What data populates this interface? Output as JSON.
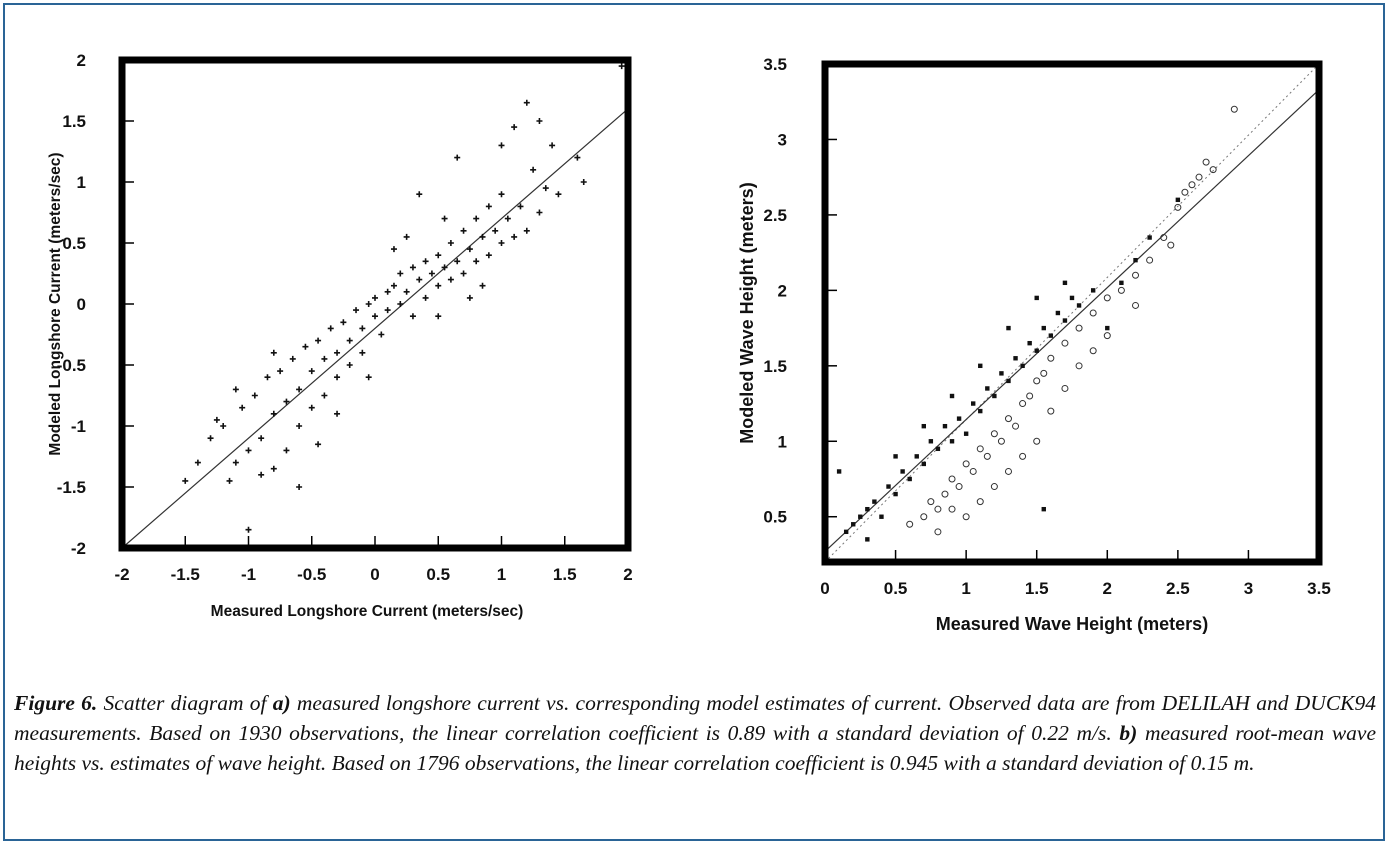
{
  "figure": {
    "caption": {
      "label": "Figure 6.",
      "part_a": "a)",
      "text_1": " Scatter diagram of ",
      "text_2": " measured longshore current vs. corresponding model estimates of current. Observed data are from DELILAH and DUCK94 measurements. Based on 1930 observations, the linear correlation coefficient is 0.89 with a standard deviation of 0.22 m/s. ",
      "part_b": "b)",
      "text_3": " measured root-mean wave heights vs. estimates of wave height. Based on 1796 observations, the linear correlation coefficient is 0.945 with a standard deviation of 0.15 m."
    }
  },
  "chart_data": [
    {
      "type": "scatter",
      "xlabel": "Measured Longshore Current (meters/sec)",
      "ylabel": "Modeled  Longshore Current (meters/sec)",
      "xlim": [
        -2,
        2
      ],
      "ylim": [
        -2,
        2
      ],
      "xticks": [
        "-2",
        "-1.5",
        "-1",
        "-0.5",
        "0",
        "0.5",
        "1",
        "1.5",
        "2"
      ],
      "yticks": [
        "-2",
        "-1.5",
        "-1",
        "-0.5",
        "0",
        "0.5",
        "1",
        "1.5",
        "2"
      ],
      "observations": 1930,
      "correlation": 0.89,
      "std_dev": 0.22,
      "fit_line": {
        "x": [
          -2,
          2
        ],
        "y": [
          -2,
          1.6
        ]
      },
      "series": [
        {
          "values": [
            [
              -1.5,
              -1.45
            ],
            [
              -1.4,
              -1.3
            ],
            [
              -1.3,
              -1.1
            ],
            [
              -1.25,
              -0.95
            ],
            [
              -1.2,
              -1.0
            ],
            [
              -1.15,
              -1.45
            ],
            [
              -1.1,
              -1.3
            ],
            [
              -1.05,
              -0.85
            ],
            [
              -1.0,
              -1.2
            ],
            [
              -1.0,
              -1.85
            ],
            [
              -0.95,
              -0.75
            ],
            [
              -0.9,
              -1.1
            ],
            [
              -0.9,
              -1.4
            ],
            [
              -0.85,
              -0.6
            ],
            [
              -0.8,
              -0.9
            ],
            [
              -0.8,
              -1.35
            ],
            [
              -0.75,
              -0.55
            ],
            [
              -0.7,
              -0.8
            ],
            [
              -0.7,
              -1.2
            ],
            [
              -0.65,
              -0.45
            ],
            [
              -0.6,
              -0.7
            ],
            [
              -0.6,
              -1.0
            ],
            [
              -0.55,
              -0.35
            ],
            [
              -0.5,
              -0.55
            ],
            [
              -0.5,
              -0.85
            ],
            [
              -0.45,
              -0.3
            ],
            [
              -0.4,
              -0.45
            ],
            [
              -0.4,
              -0.75
            ],
            [
              -0.35,
              -0.2
            ],
            [
              -0.3,
              -0.4
            ],
            [
              -0.3,
              -0.6
            ],
            [
              -0.25,
              -0.15
            ],
            [
              -0.2,
              -0.3
            ],
            [
              -0.2,
              -0.5
            ],
            [
              -0.15,
              -0.05
            ],
            [
              -0.1,
              -0.2
            ],
            [
              -0.1,
              -0.4
            ],
            [
              -0.05,
              0.0
            ],
            [
              0.0,
              -0.1
            ],
            [
              0.0,
              0.05
            ],
            [
              0.05,
              -0.25
            ],
            [
              0.1,
              0.1
            ],
            [
              0.1,
              -0.05
            ],
            [
              0.15,
              0.15
            ],
            [
              0.2,
              0.0
            ],
            [
              0.2,
              0.25
            ],
            [
              0.25,
              0.1
            ],
            [
              0.3,
              0.3
            ],
            [
              0.3,
              -0.1
            ],
            [
              0.35,
              0.2
            ],
            [
              0.4,
              0.35
            ],
            [
              0.4,
              0.05
            ],
            [
              0.45,
              0.25
            ],
            [
              0.5,
              0.4
            ],
            [
              0.5,
              0.15
            ],
            [
              0.55,
              0.3
            ],
            [
              0.6,
              0.5
            ],
            [
              0.6,
              0.2
            ],
            [
              0.65,
              0.35
            ],
            [
              0.7,
              0.6
            ],
            [
              0.7,
              0.25
            ],
            [
              0.75,
              0.45
            ],
            [
              0.8,
              0.7
            ],
            [
              0.8,
              0.35
            ],
            [
              0.85,
              0.55
            ],
            [
              0.9,
              0.8
            ],
            [
              0.9,
              0.4
            ],
            [
              0.95,
              0.6
            ],
            [
              1.0,
              0.9
            ],
            [
              1.0,
              0.5
            ],
            [
              1.05,
              0.7
            ],
            [
              1.1,
              1.45
            ],
            [
              1.1,
              0.55
            ],
            [
              1.15,
              0.8
            ],
            [
              1.2,
              1.65
            ],
            [
              1.2,
              0.6
            ],
            [
              1.25,
              1.1
            ],
            [
              1.3,
              1.5
            ],
            [
              1.3,
              0.75
            ],
            [
              1.35,
              0.95
            ],
            [
              1.4,
              1.3
            ],
            [
              1.45,
              0.9
            ],
            [
              1.6,
              1.2
            ],
            [
              1.65,
              1.0
            ],
            [
              1.95,
              1.95
            ],
            [
              -0.3,
              -0.9
            ],
            [
              -0.6,
              -1.5
            ],
            [
              -0.8,
              -0.4
            ],
            [
              0.25,
              0.55
            ],
            [
              0.5,
              -0.1
            ],
            [
              0.65,
              1.2
            ],
            [
              0.35,
              0.9
            ],
            [
              -0.05,
              -0.6
            ],
            [
              0.75,
              0.05
            ],
            [
              1.0,
              1.3
            ],
            [
              -1.1,
              -0.7
            ],
            [
              0.15,
              0.45
            ],
            [
              -0.45,
              -1.15
            ],
            [
              0.55,
              0.7
            ],
            [
              0.85,
              0.15
            ]
          ]
        }
      ]
    },
    {
      "type": "scatter",
      "xlabel": "Measured Wave Height (meters)",
      "ylabel": "Modeled  Wave Height (meters)",
      "xlim": [
        0,
        3.5
      ],
      "ylim": [
        0.2,
        3.5
      ],
      "xticks": [
        "0",
        "0.5",
        "1",
        "1.5",
        "2",
        "2.5",
        "3",
        "3.5"
      ],
      "yticks": [
        "0.5",
        "1",
        "1.5",
        "2",
        "2.5",
        "3",
        "3.5"
      ],
      "observations": 1796,
      "correlation": 0.945,
      "std_dev": 0.15,
      "fit_line": {
        "x": [
          0,
          3.5
        ],
        "y": [
          0.27,
          3.33
        ]
      },
      "reference_line": {
        "x": [
          0,
          3.5
        ],
        "y": [
          0.2,
          3.5
        ]
      },
      "series": [
        {
          "values": [
            [
              0.1,
              0.8
            ],
            [
              0.15,
              0.4
            ],
            [
              0.2,
              0.45
            ],
            [
              0.3,
              0.55
            ],
            [
              0.35,
              0.6
            ],
            [
              0.4,
              0.5
            ],
            [
              0.45,
              0.7
            ],
            [
              0.5,
              0.65
            ],
            [
              0.55,
              0.8
            ],
            [
              0.6,
              0.75
            ],
            [
              0.65,
              0.9
            ],
            [
              0.7,
              0.85
            ],
            [
              0.75,
              1.0
            ],
            [
              0.8,
              0.95
            ],
            [
              0.85,
              1.1
            ],
            [
              0.9,
              1.0
            ],
            [
              0.95,
              1.15
            ],
            [
              1.0,
              1.05
            ],
            [
              1.05,
              1.25
            ],
            [
              1.1,
              1.2
            ],
            [
              1.15,
              1.35
            ],
            [
              1.2,
              1.3
            ],
            [
              1.25,
              1.45
            ],
            [
              1.3,
              1.4
            ],
            [
              1.35,
              1.55
            ],
            [
              1.4,
              1.5
            ],
            [
              1.45,
              1.65
            ],
            [
              1.5,
              1.6
            ],
            [
              1.55,
              1.75
            ],
            [
              1.6,
              1.7
            ],
            [
              1.65,
              1.85
            ],
            [
              1.7,
              1.8
            ],
            [
              1.75,
              1.95
            ],
            [
              1.8,
              1.9
            ],
            [
              1.9,
              2.0
            ],
            [
              2.0,
              1.75
            ],
            [
              2.1,
              2.05
            ],
            [
              2.2,
              2.2
            ],
            [
              2.3,
              2.35
            ],
            [
              2.5,
              2.6
            ],
            [
              1.55,
              0.55
            ],
            [
              0.3,
              0.35
            ],
            [
              0.25,
              0.5
            ],
            [
              0.5,
              0.9
            ],
            [
              0.7,
              1.1
            ],
            [
              0.9,
              1.3
            ],
            [
              1.1,
              1.5
            ],
            [
              1.3,
              1.75
            ],
            [
              1.5,
              1.95
            ],
            [
              1.7,
              2.05
            ]
          ]
        },
        {
          "values": [
            [
              0.6,
              0.45
            ],
            [
              0.7,
              0.5
            ],
            [
              0.75,
              0.6
            ],
            [
              0.8,
              0.55
            ],
            [
              0.85,
              0.65
            ],
            [
              0.9,
              0.75
            ],
            [
              0.95,
              0.7
            ],
            [
              1.0,
              0.85
            ],
            [
              1.05,
              0.8
            ],
            [
              1.1,
              0.95
            ],
            [
              1.15,
              0.9
            ],
            [
              1.2,
              1.05
            ],
            [
              1.25,
              1.0
            ],
            [
              1.3,
              1.15
            ],
            [
              1.35,
              1.1
            ],
            [
              1.4,
              1.25
            ],
            [
              1.45,
              1.3
            ],
            [
              1.5,
              1.4
            ],
            [
              1.55,
              1.45
            ],
            [
              1.6,
              1.55
            ],
            [
              1.7,
              1.65
            ],
            [
              1.8,
              1.75
            ],
            [
              1.9,
              1.85
            ],
            [
              2.0,
              1.95
            ],
            [
              2.1,
              2.0
            ],
            [
              2.2,
              2.1
            ],
            [
              2.3,
              2.2
            ],
            [
              2.4,
              2.35
            ],
            [
              2.5,
              2.55
            ],
            [
              2.55,
              2.65
            ],
            [
              2.6,
              2.7
            ],
            [
              2.65,
              2.75
            ],
            [
              2.75,
              2.8
            ],
            [
              2.9,
              3.2
            ],
            [
              1.0,
              0.5
            ],
            [
              1.2,
              0.7
            ],
            [
              1.4,
              0.9
            ],
            [
              0.9,
              0.55
            ],
            [
              1.3,
              0.8
            ],
            [
              1.6,
              1.2
            ],
            [
              1.8,
              1.5
            ],
            [
              2.0,
              1.7
            ],
            [
              0.8,
              0.4
            ],
            [
              1.1,
              0.6
            ],
            [
              1.5,
              1.0
            ],
            [
              1.7,
              1.35
            ],
            [
              1.9,
              1.6
            ],
            [
              2.2,
              1.9
            ],
            [
              2.45,
              2.3
            ],
            [
              2.7,
              2.85
            ]
          ]
        }
      ]
    }
  ]
}
